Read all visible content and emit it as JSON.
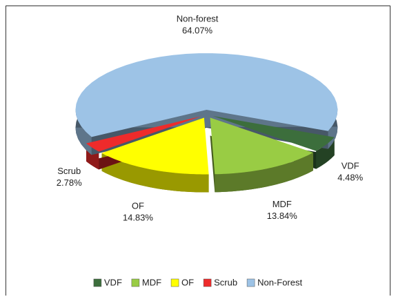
{
  "chart_data": {
    "type": "pie",
    "categories": [
      "VDF",
      "MDF",
      "OF",
      "Scrub",
      "Non-Forest"
    ],
    "slice_labels": [
      "VDF",
      "MDF",
      "OF",
      "Scrub",
      "Non-forest"
    ],
    "values": [
      4.48,
      13.84,
      14.83,
      2.78,
      64.07
    ],
    "value_labels": [
      "4.48%",
      "13.84%",
      "14.83%",
      "2.78%",
      "64.07%"
    ],
    "colors": [
      "#3c6e3c",
      "#99cc44",
      "#ffff00",
      "#ee2b2b",
      "#9dc3e6"
    ],
    "legend": "bottom"
  }
}
